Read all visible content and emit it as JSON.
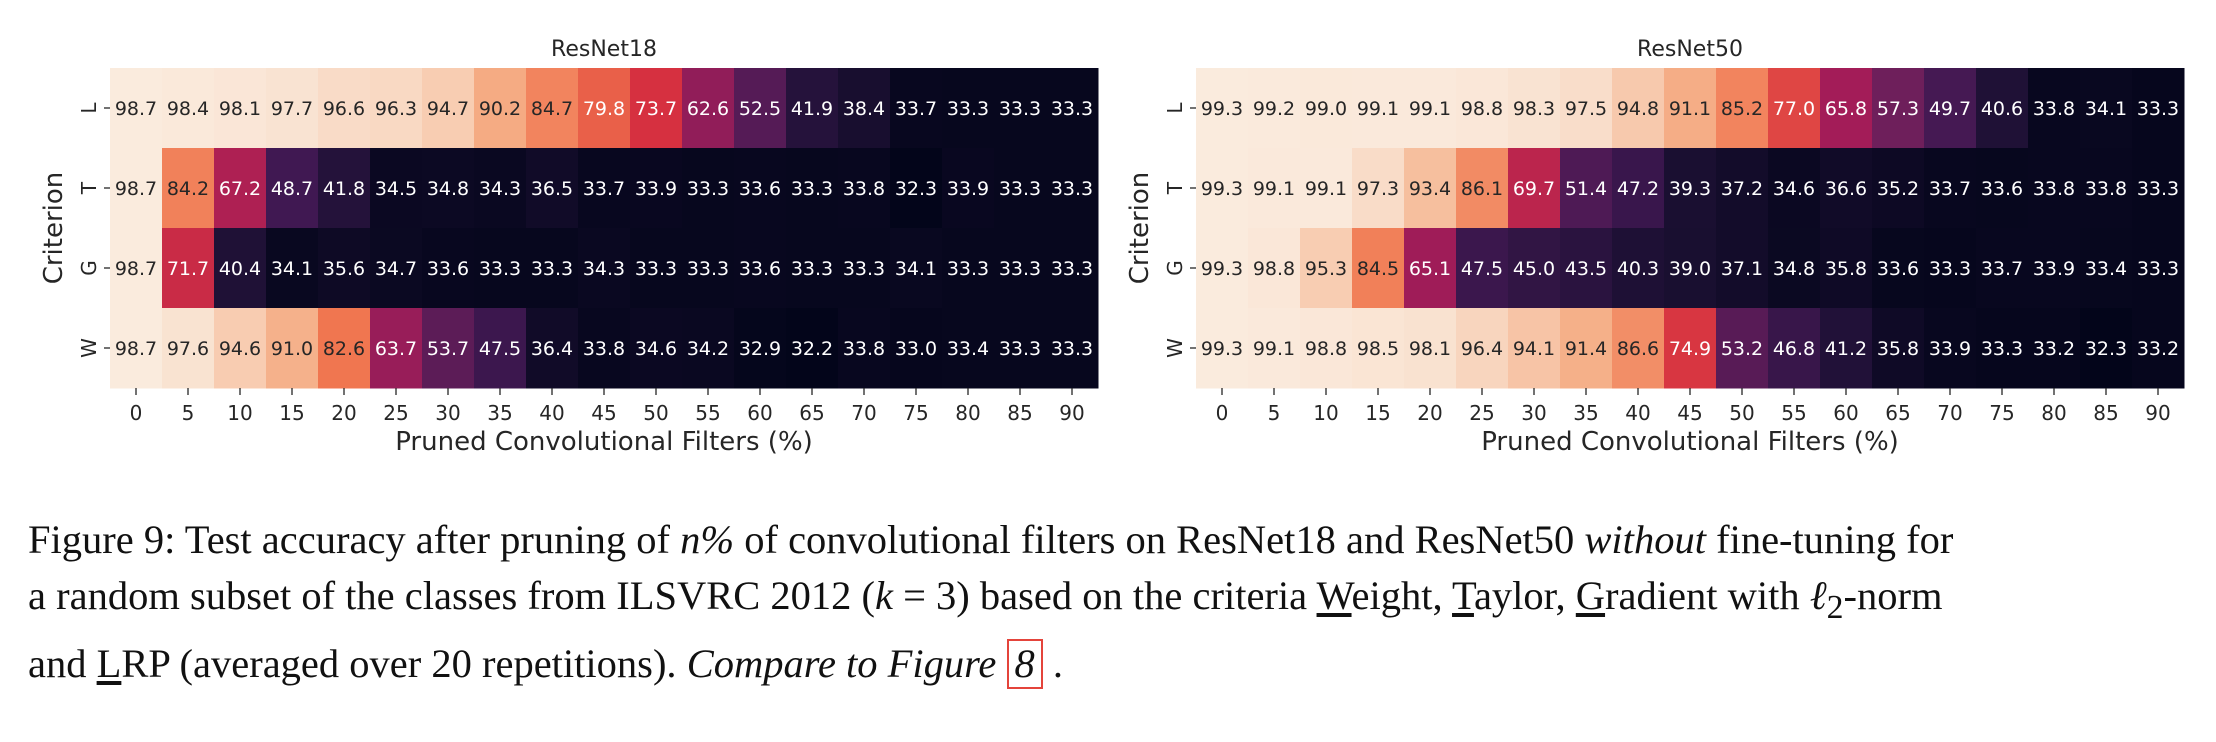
{
  "chart_data": [
    {
      "type": "heatmap",
      "title": "ResNet18",
      "xlabel": "Pruned Convolutional Filters (%)",
      "ylabel": "Criterion",
      "x": [
        "0",
        "5",
        "10",
        "15",
        "20",
        "25",
        "30",
        "35",
        "40",
        "45",
        "50",
        "55",
        "60",
        "65",
        "70",
        "75",
        "80",
        "85",
        "90"
      ],
      "y": [
        "L",
        "T",
        "G",
        "W"
      ],
      "values": [
        [
          98.7,
          98.4,
          98.1,
          97.7,
          96.6,
          96.3,
          94.7,
          90.2,
          84.7,
          79.8,
          73.7,
          62.6,
          52.5,
          41.9,
          38.4,
          33.7,
          33.3,
          33.3,
          33.3
        ],
        [
          98.7,
          84.2,
          67.2,
          48.7,
          41.8,
          34.5,
          34.8,
          34.3,
          36.5,
          33.7,
          33.9,
          33.3,
          33.6,
          33.3,
          33.8,
          32.3,
          33.9,
          33.3,
          33.3
        ],
        [
          98.7,
          71.7,
          40.4,
          34.1,
          35.6,
          34.7,
          33.6,
          33.3,
          33.3,
          34.3,
          33.3,
          33.3,
          33.6,
          33.3,
          33.3,
          34.1,
          33.3,
          33.3,
          33.3
        ],
        [
          98.7,
          97.6,
          94.6,
          91.0,
          82.6,
          63.7,
          53.7,
          47.5,
          36.4,
          33.8,
          34.6,
          34.2,
          32.9,
          32.2,
          33.8,
          33.0,
          33.4,
          33.3,
          33.3
        ]
      ],
      "value_labels": [
        [
          "98.7",
          "98.4",
          "98.1",
          "97.7",
          "96.6",
          "96.3",
          "94.7",
          "90.2",
          "84.7",
          "79.8",
          "73.7",
          "62.6",
          "52.5",
          "41.9",
          "38.4",
          "33.7",
          "33.3",
          "33.3",
          "33.3"
        ],
        [
          "98.7",
          "84.2",
          "67.2",
          "48.7",
          "41.8",
          "34.5",
          "34.8",
          "34.3",
          "36.5",
          "33.7",
          "33.9",
          "33.3",
          "33.6",
          "33.3",
          "33.8",
          "32.3",
          "33.9",
          "33.3",
          "33.3"
        ],
        [
          "98.7",
          "71.7",
          "40.4",
          "34.1",
          "35.6",
          "34.7",
          "33.6",
          "33.3",
          "33.3",
          "34.3",
          "33.3",
          "33.3",
          "33.6",
          "33.3",
          "33.3",
          "34.1",
          "33.3",
          "33.3",
          "33.3"
        ],
        [
          "98.7",
          "97.6",
          "94.6",
          "91.0",
          "82.6",
          "63.7",
          "53.7",
          "47.5",
          "36.4",
          "33.8",
          "34.6",
          "34.2",
          "32.9",
          "32.2",
          "33.8",
          "33.0",
          "33.4",
          "33.3",
          "33.3"
        ]
      ],
      "colormap": "rocket"
    },
    {
      "type": "heatmap",
      "title": "ResNet50",
      "xlabel": "Pruned Convolutional Filters (%)",
      "ylabel": "Criterion",
      "x": [
        "0",
        "5",
        "10",
        "15",
        "20",
        "25",
        "30",
        "35",
        "40",
        "45",
        "50",
        "55",
        "60",
        "65",
        "70",
        "75",
        "80",
        "85",
        "90"
      ],
      "y": [
        "L",
        "T",
        "G",
        "W"
      ],
      "values": [
        [
          99.3,
          99.2,
          99.0,
          99.1,
          99.1,
          98.8,
          98.3,
          97.5,
          94.8,
          91.1,
          85.2,
          77.0,
          65.8,
          57.3,
          49.7,
          40.6,
          33.8,
          34.1,
          33.3
        ],
        [
          99.3,
          99.1,
          99.1,
          97.3,
          93.4,
          86.1,
          69.7,
          51.4,
          47.2,
          39.3,
          37.2,
          34.6,
          36.6,
          35.2,
          33.7,
          33.6,
          33.8,
          33.8,
          33.3
        ],
        [
          99.3,
          98.8,
          95.3,
          84.5,
          65.1,
          47.5,
          45.0,
          43.5,
          40.3,
          39.0,
          37.1,
          34.8,
          35.8,
          33.6,
          33.3,
          33.7,
          33.9,
          33.4,
          33.3
        ],
        [
          99.3,
          99.1,
          98.8,
          98.5,
          98.1,
          96.4,
          94.1,
          91.4,
          86.6,
          74.9,
          53.2,
          46.8,
          41.2,
          35.8,
          33.9,
          33.3,
          33.2,
          32.3,
          33.2
        ]
      ],
      "value_labels": [
        [
          "99.3",
          "99.2",
          "99.0",
          "99.1",
          "99.1",
          "98.8",
          "98.3",
          "97.5",
          "94.8",
          "91.1",
          "85.2",
          "77.0",
          "65.8",
          "57.3",
          "49.7",
          "40.6",
          "33.8",
          "34.1",
          "33.3"
        ],
        [
          "99.3",
          "99.1",
          "99.1",
          "97.3",
          "93.4",
          "86.1",
          "69.7",
          "51.4",
          "47.2",
          "39.3",
          "37.2",
          "34.6",
          "36.6",
          "35.2",
          "33.7",
          "33.6",
          "33.8",
          "33.8",
          "33.3"
        ],
        [
          "99.3",
          "98.8",
          "95.3",
          "84.5",
          "65.1",
          "47.5",
          "45.0",
          "43.5",
          "40.3",
          "39.0",
          "37.1",
          "34.8",
          "35.8",
          "33.6",
          "33.3",
          "33.7",
          "33.9",
          "33.4",
          "33.3"
        ],
        [
          "99.3",
          "99.1",
          "98.8",
          "98.5",
          "98.1",
          "96.4",
          "94.1",
          "91.4",
          "86.6",
          "74.9",
          "53.2",
          "46.8",
          "41.2",
          "35.8",
          "33.9",
          "33.3",
          "33.2",
          "32.3",
          "33.2"
        ]
      ],
      "colormap": "rocket"
    }
  ],
  "caption": {
    "label": "Figure 9:",
    "l1a": "Test accuracy after pruning of ",
    "l1n": "n%",
    "l1b": " of convolutional filters on ResNet18 and ResNet50 ",
    "l1w": "without",
    "l1c": " fine-tuning for",
    "l2a": "a random subset of the classes from ILSVRC 2012 (",
    "l2k": "k",
    "l2b": " = 3) based on the criteria ",
    "l2W": "W",
    "l2c": "eight, ",
    "l2T": "T",
    "l2d": "aylor, ",
    "l2G": "G",
    "l2e": "radient with ",
    "l2ell": "ℓ",
    "l2sub": "2",
    "l2f": "-norm",
    "l3a": "and ",
    "l3L": "L",
    "l3b": "RP (averaged over 20 repetitions).  ",
    "l3i": "Compare to Figure ",
    "l3ref": "8",
    "l3c": " ."
  }
}
